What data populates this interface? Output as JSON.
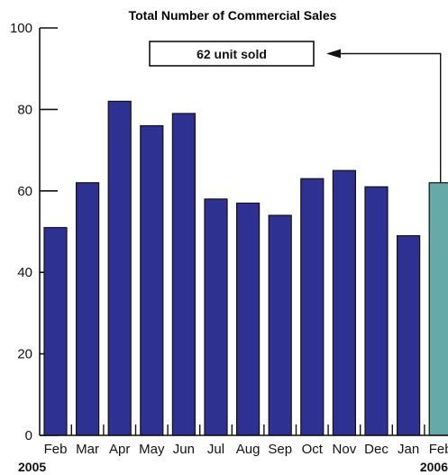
{
  "chart_data": {
    "type": "bar",
    "title": "Total Number of Commercial Sales",
    "categories": [
      "Feb",
      "Mar",
      "Apr",
      "May",
      "Jun",
      "Jul",
      "Aug",
      "Sep",
      "Oct",
      "Nov",
      "Dec",
      "Jan",
      "Feb"
    ],
    "values": [
      51,
      62,
      82,
      76,
      79,
      58,
      57,
      54,
      63,
      65,
      61,
      49,
      62
    ],
    "year_labels": [
      {
        "text": "2005",
        "category_index": 0
      },
      {
        "text": "2006",
        "category_index": 12
      }
    ],
    "ylim": [
      0,
      100
    ],
    "yticks": [
      0,
      20,
      40,
      60,
      80,
      100
    ],
    "xlabel": "",
    "ylabel": "",
    "grid": false,
    "colors": {
      "bar": "#2e3192",
      "highlight": "#66aaa8",
      "stroke": "#111111"
    },
    "highlight_index": 12,
    "annotation": {
      "text": "62 unit sold",
      "category_index": 12
    }
  }
}
